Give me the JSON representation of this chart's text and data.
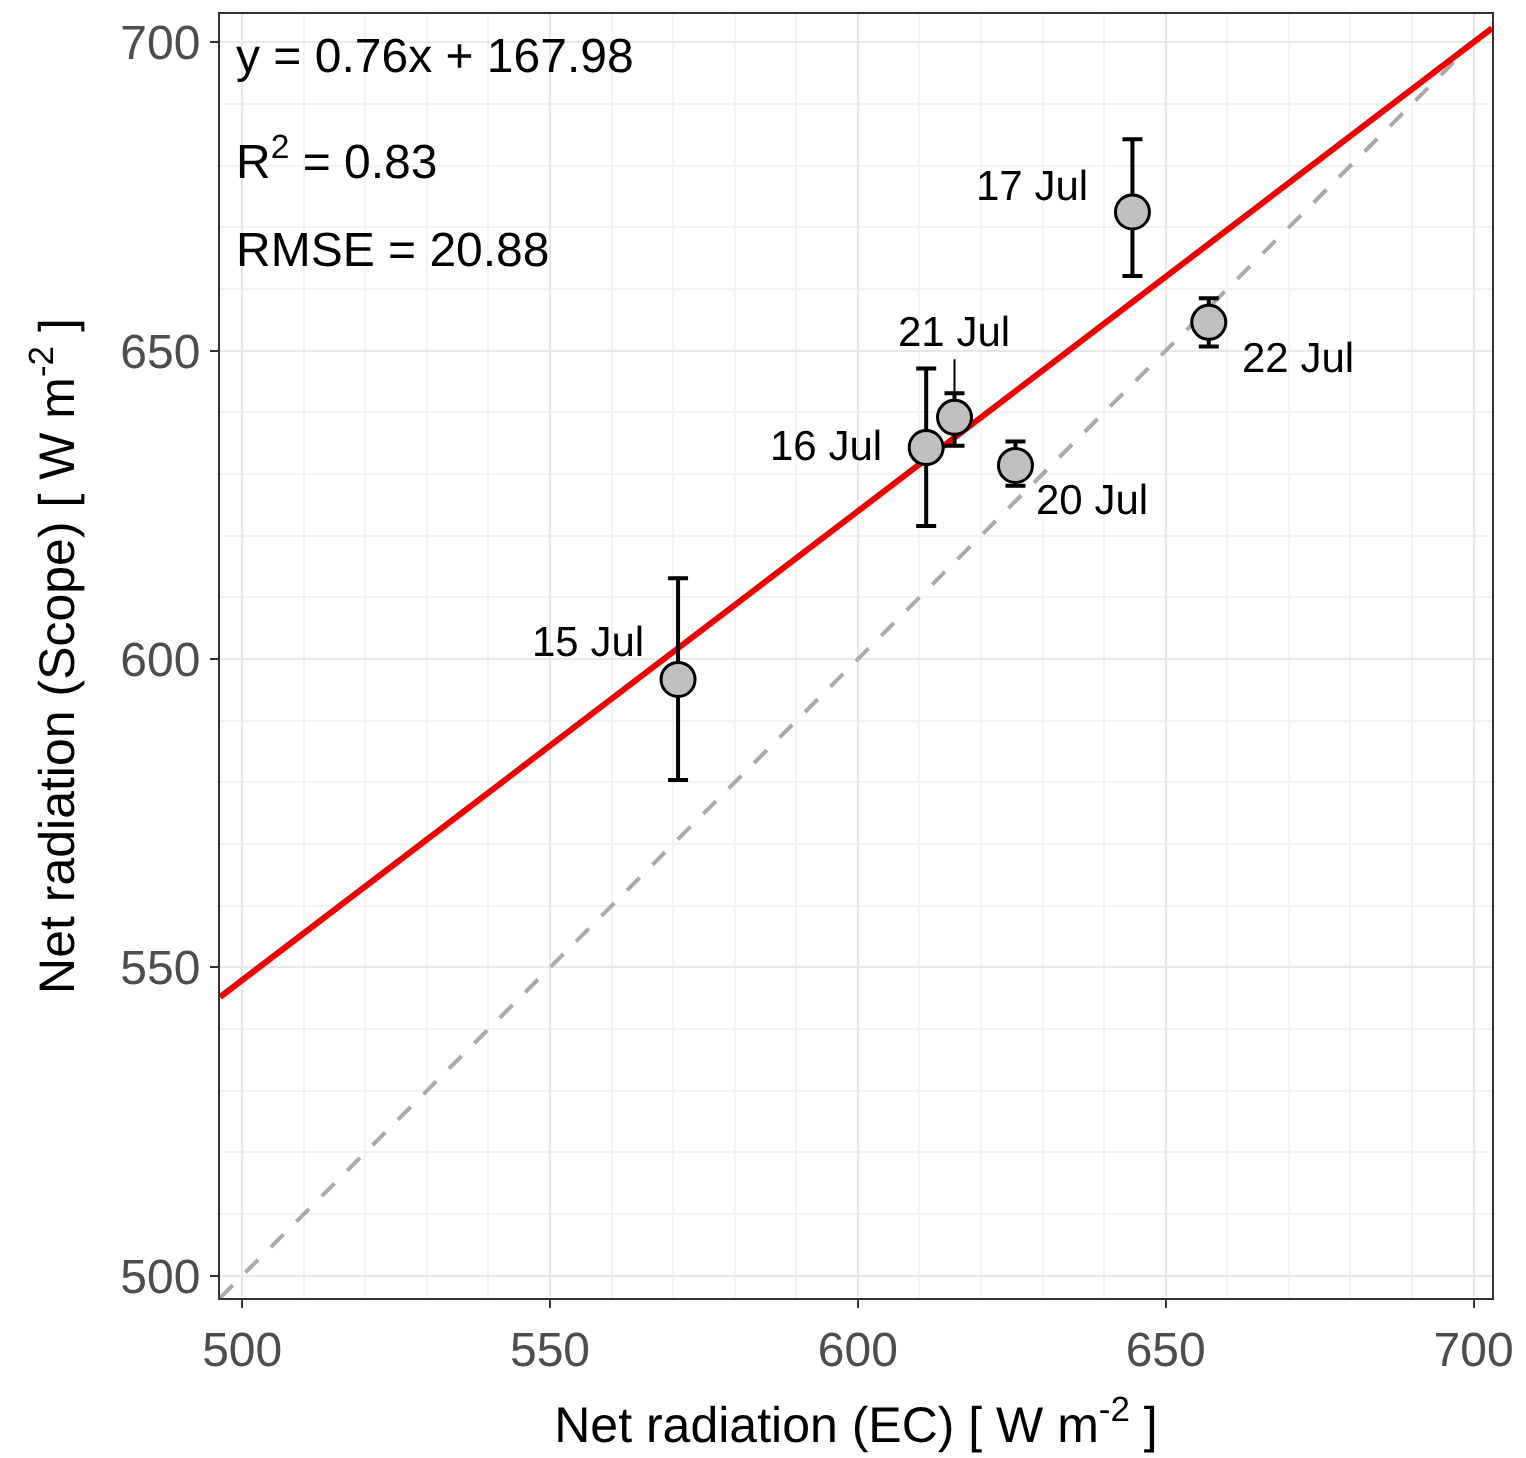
{
  "chart_data": {
    "type": "scatter",
    "xlabel": "Net radiation (EC) [ W m$^{-2}$ ]",
    "ylabel": "Net radiation (Scope) [ W m$^{-2}$ ]",
    "xlim": [
      496.4,
      703
    ],
    "ylim": [
      496.4,
      704.6
    ],
    "xticks": [
      500,
      550,
      600,
      650,
      700
    ],
    "yticks": [
      500,
      550,
      600,
      650,
      700
    ],
    "grid": true,
    "series": [
      {
        "type": "line",
        "color": "#aaaaaa",
        "line_style": "dashed",
        "marker": "none",
        "x": [
          496.4,
          703
        ],
        "values": [
          496.4,
          703
        ]
      },
      {
        "type": "line",
        "color": "#ee0000",
        "line_style": "solid",
        "marker": "none",
        "x": [
          496.4,
          703
        ],
        "values": [
          545.2,
          702.3
        ]
      },
      {
        "color": "#c0c0c0",
        "marker": "circle",
        "x": [
          570.8,
          611.1,
          615.7,
          625.6,
          644.6,
          657.0
        ],
        "values": [
          596.7,
          634.3,
          639.2,
          631.4,
          672.5,
          654.6
        ],
        "errors": [
          [
            580.4,
            613.1
          ],
          [
            621.6,
            647.1
          ],
          [
            634.6,
            643.1
          ],
          [
            628.1,
            635.3
          ],
          [
            662.1,
            684.3
          ],
          [
            650.7,
            658.5
          ]
        ]
      }
    ],
    "annotations": [
      "y = 0.76x + 167.98",
      "R$^{2}$ = 0.83",
      "RMSE = 20.88",
      {
        "text": "15 Jul",
        "x": 570.8,
        "y": 596.7
      },
      {
        "text": "16 Jul",
        "x": 611.1,
        "y": 634.3
      },
      {
        "text": "21 Jul",
        "x": 615.7,
        "y": 639.2
      },
      {
        "text": "20 Jul",
        "x": 625.6,
        "y": 631.4
      },
      {
        "text": "17 Jul",
        "x": 644.6,
        "y": 672.5
      },
      {
        "text": "22 Jul",
        "x": 657.0,
        "y": 654.6
      }
    ]
  }
}
